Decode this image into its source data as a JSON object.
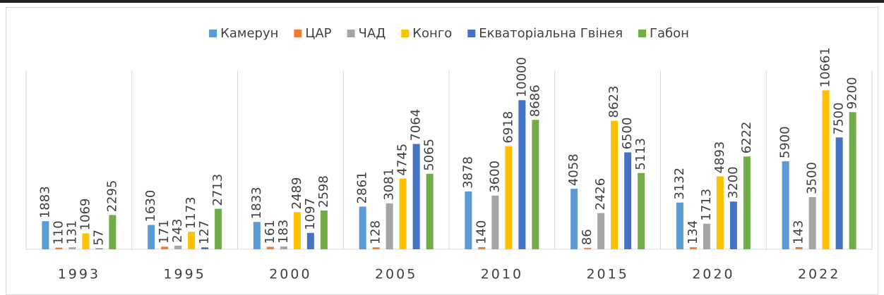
{
  "chart_data": {
    "type": "bar",
    "categories": [
      "1993",
      "1995",
      "2000",
      "2005",
      "2010",
      "2015",
      "2020",
      "2022"
    ],
    "series": [
      {
        "name": "Камерун",
        "color": "#5b9bd5",
        "values": [
          1883,
          1630,
          1833,
          2861,
          3878,
          4058,
          3132,
          5900
        ]
      },
      {
        "name": "ЦАР",
        "color": "#ed7d31",
        "values": [
          110,
          171,
          161,
          128,
          140,
          86,
          134,
          143
        ]
      },
      {
        "name": "ЧАД",
        "color": "#a5a5a5",
        "values": [
          131,
          243,
          183,
          3081,
          3600,
          2426,
          1713,
          3500
        ]
      },
      {
        "name": "Конго",
        "color": "#ffc000",
        "values": [
          1069,
          1173,
          2489,
          4745,
          6918,
          8623,
          4893,
          10661
        ]
      },
      {
        "name": "Екваторіальна Гвінея",
        "color": "#4472c4",
        "values": [
          57,
          127,
          1097,
          7064,
          10000,
          6500,
          3200,
          7500
        ]
      },
      {
        "name": "Габон",
        "color": "#70ad47",
        "values": [
          2295,
          2713,
          2598,
          5065,
          8686,
          5113,
          6222,
          9200
        ]
      }
    ],
    "ylim": [
      0,
      12000
    ],
    "legend": "top"
  }
}
